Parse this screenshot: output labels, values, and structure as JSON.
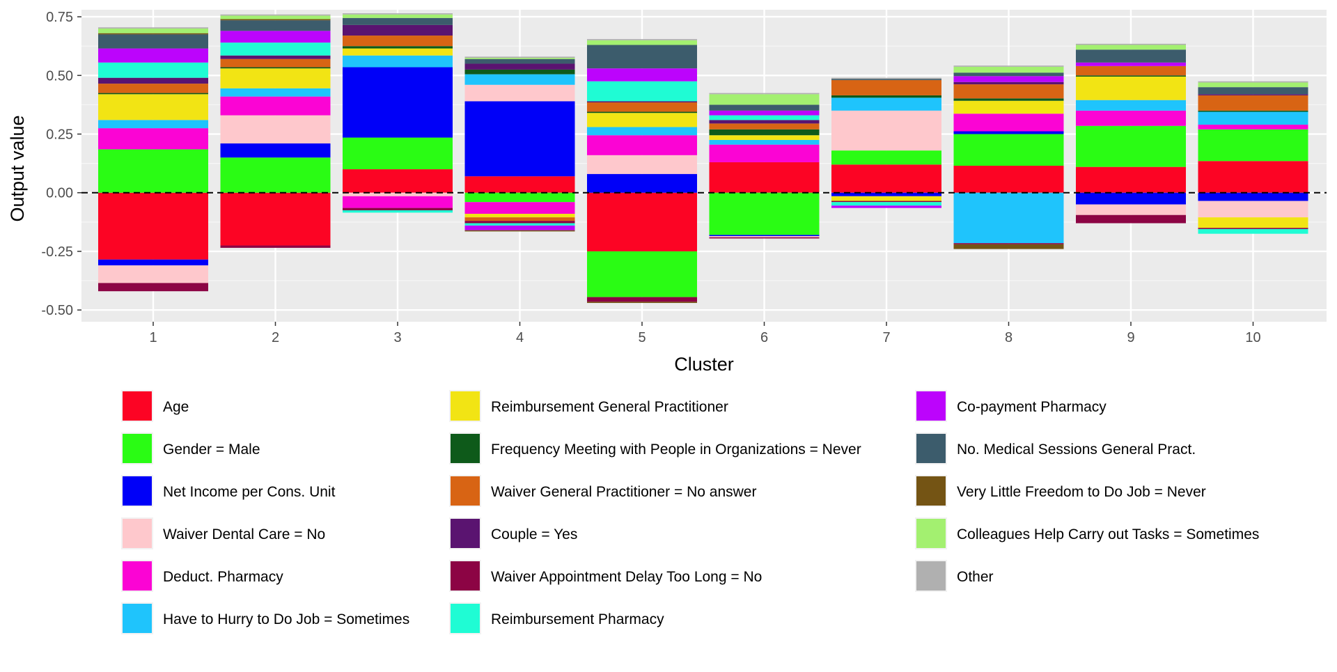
{
  "chart_data": {
    "type": "bar",
    "stacked": true,
    "xlabel": "Cluster",
    "ylabel": "Output value",
    "ylim": [
      -0.55,
      0.78
    ],
    "yticks": [
      {
        "value": -0.5,
        "label": "-0.50"
      },
      {
        "value": -0.25,
        "label": "-0.25"
      },
      {
        "value": 0,
        "label": "0.00"
      },
      {
        "value": 0.25,
        "label": "0.25"
      },
      {
        "value": 0.5,
        "label": "0.50"
      },
      {
        "value": 0.75,
        "label": "0.75"
      }
    ],
    "categories": [
      "1",
      "2",
      "3",
      "4",
      "5",
      "6",
      "7",
      "8",
      "9",
      "10"
    ],
    "reference_line": {
      "y": 0,
      "style": "dashed"
    },
    "grid": true,
    "legend_position": "bottom",
    "series": [
      {
        "name": "Age",
        "color": "#FC0424",
        "values": [
          -0.285,
          -0.225,
          0.1,
          0.07,
          -0.25,
          0.13,
          0.12,
          0.115,
          0.11,
          0.135
        ]
      },
      {
        "name": "Gender = Male",
        "color": "#2AFC14",
        "values": [
          0.185,
          0.15,
          0.135,
          -0.04,
          -0.195,
          -0.18,
          0.06,
          0.135,
          0.175,
          0.135
        ]
      },
      {
        "name": "Net Income per Cons. Unit",
        "color": "#0000F8",
        "values": [
          -0.025,
          0.06,
          0.3,
          0.32,
          0.08,
          -0.005,
          -0.015,
          0.012,
          -0.05,
          -0.035
        ]
      },
      {
        "name": "Waiver Dental Care = No",
        "color": "#FEC8CC",
        "values": [
          -0.075,
          0.12,
          -0.015,
          0.07,
          0.08,
          -0.005,
          0.17,
          0.0,
          -0.045,
          -0.07
        ]
      },
      {
        "name": "Deduct. Pharmacy",
        "color": "#FB04D4",
        "values": [
          0.09,
          0.08,
          -0.05,
          -0.05,
          0.085,
          0.075,
          0.0,
          0.075,
          0.065,
          0.02
        ]
      },
      {
        "name": "Have to Hurry to Do Job = Sometimes",
        "color": "#1FC4FC",
        "values": [
          0.035,
          0.035,
          0.05,
          0.045,
          0.035,
          0.02,
          0.055,
          -0.215,
          0.045,
          0.055
        ]
      },
      {
        "name": "Reimbursement General Practitioner",
        "color": "#F2E414",
        "values": [
          0.11,
          0.085,
          0.03,
          -0.015,
          0.06,
          0.02,
          -0.02,
          0.055,
          0.1,
          -0.045
        ]
      },
      {
        "name": "Frequency Meeting with People in Organizations = Never",
        "color": "#0E5A1A",
        "values": [
          0.005,
          0.005,
          0.01,
          0.02,
          0.005,
          0.025,
          0.01,
          0.01,
          0.005,
          0.005
        ]
      },
      {
        "name": "Waiver General Practitioner = No answer",
        "color": "#D86414",
        "values": [
          0.04,
          0.035,
          0.045,
          -0.015,
          0.04,
          0.025,
          0.065,
          0.06,
          0.04,
          0.065
        ]
      },
      {
        "name": "Couple = Yes",
        "color": "#5A1470",
        "values": [
          0.025,
          0.015,
          0.045,
          0.025,
          0.005,
          0.015,
          0.0,
          0.01,
          0.0,
          0.005
        ]
      },
      {
        "name": "Waiver Appointment Delay Too Long = No",
        "color": "#8C0444",
        "values": [
          -0.035,
          -0.01,
          -0.01,
          -0.01,
          -0.02,
          -0.005,
          -0.005,
          -0.005,
          -0.035,
          -0.005
        ]
      },
      {
        "name": "Reimbursement Pharmacy",
        "color": "#1FFCD4",
        "values": [
          0.065,
          0.055,
          -0.01,
          -0.01,
          0.085,
          0.02,
          -0.015,
          0.0,
          0.0,
          -0.02
        ]
      },
      {
        "name": "Co-payment Pharmacy",
        "color": "#BC04FC",
        "values": [
          0.06,
          0.05,
          0.0,
          -0.02,
          0.055,
          0.02,
          -0.01,
          0.025,
          0.015,
          0.0
        ]
      },
      {
        "name": "No. Medical Sessions General Pract.",
        "color": "#3C5C6C",
        "values": [
          0.06,
          0.045,
          0.03,
          0.02,
          0.1,
          0.025,
          0.005,
          0.015,
          0.055,
          0.03
        ]
      },
      {
        "name": "Very Little Freedom to Do Job = Never",
        "color": "#745414",
        "values": [
          0.005,
          0.005,
          0.0,
          -0.005,
          -0.005,
          0.0,
          0.0,
          -0.02,
          0.0,
          0.0
        ]
      },
      {
        "name": "Colleagues Help Carry out Tasks = Sometimes",
        "color": "#A3F070",
        "values": [
          0.02,
          0.015,
          0.015,
          0.005,
          0.02,
          0.045,
          0.0,
          0.025,
          0.02,
          0.02
        ]
      },
      {
        "name": "Other",
        "color": "#B0B0B0",
        "values": [
          0.005,
          0.005,
          0.005,
          0.005,
          0.005,
          0.005,
          0.005,
          0.005,
          0.005,
          0.005
        ]
      }
    ]
  }
}
